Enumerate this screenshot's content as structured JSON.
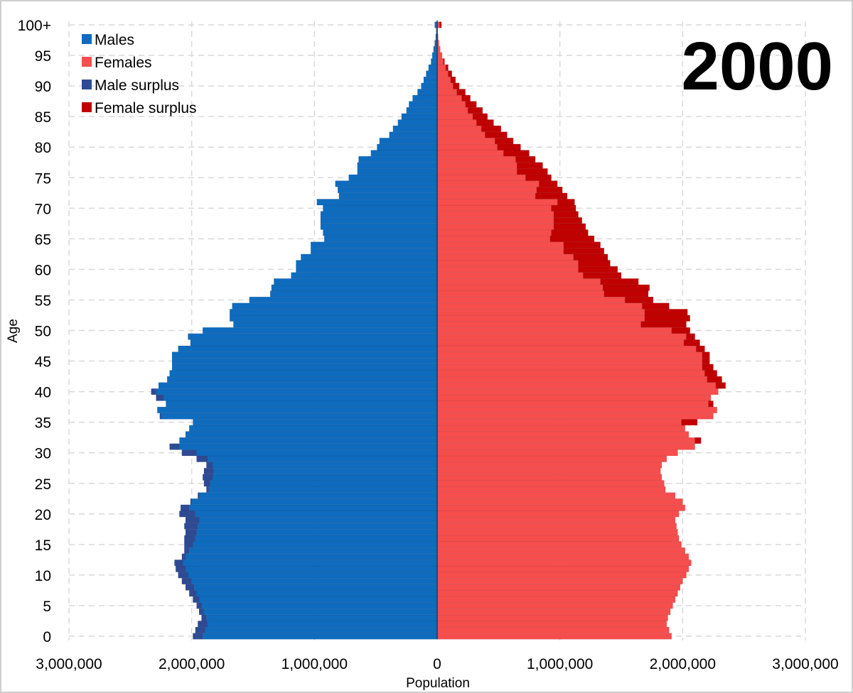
{
  "chart_data": {
    "type": "bar",
    "orientation": "horizontal",
    "subtype": "population-pyramid",
    "title": "2000",
    "xlabel": "Population",
    "ylabel": "Age",
    "xlim": [
      -3000000,
      3000000
    ],
    "x_ticks": [
      -3000000,
      -2000000,
      -1000000,
      0,
      1000000,
      2000000,
      3000000
    ],
    "x_tick_labels": [
      "3,000,000",
      "2,000,000",
      "1,000,000",
      "0",
      "1,000,000",
      "2,000,000",
      "3,000,000"
    ],
    "y_ticks": [
      0,
      5,
      10,
      15,
      20,
      25,
      30,
      35,
      40,
      45,
      50,
      55,
      60,
      65,
      70,
      75,
      80,
      85,
      90,
      95,
      100
    ],
    "y_tick_labels": [
      "0",
      "5",
      "10",
      "15",
      "20",
      "25",
      "30",
      "35",
      "40",
      "45",
      "50",
      "55",
      "60",
      "65",
      "70",
      "75",
      "80",
      "85",
      "90",
      "95",
      "100+"
    ],
    "legend": [
      {
        "name": "Males",
        "color": "#0f6bbd"
      },
      {
        "name": "Females",
        "color": "#f64d4d"
      },
      {
        "name": "Male surplus",
        "color": "#2e4a93"
      },
      {
        "name": "Female surplus",
        "color": "#c00000"
      }
    ],
    "legend_position": "top-left",
    "grid": true,
    "ages": [
      0,
      1,
      2,
      3,
      4,
      5,
      6,
      7,
      8,
      9,
      10,
      11,
      12,
      13,
      14,
      15,
      16,
      17,
      18,
      19,
      20,
      21,
      22,
      23,
      24,
      25,
      26,
      27,
      28,
      29,
      30,
      31,
      32,
      33,
      34,
      35,
      36,
      37,
      38,
      39,
      40,
      41,
      42,
      43,
      44,
      45,
      46,
      47,
      48,
      49,
      50,
      51,
      52,
      53,
      54,
      55,
      56,
      57,
      58,
      59,
      60,
      61,
      62,
      63,
      64,
      65,
      66,
      67,
      68,
      69,
      70,
      71,
      72,
      73,
      74,
      75,
      76,
      77,
      78,
      79,
      80,
      81,
      82,
      83,
      84,
      85,
      86,
      87,
      88,
      89,
      90,
      91,
      92,
      93,
      94,
      95,
      96,
      97,
      98,
      99,
      100
    ],
    "series": [
      {
        "name": "Males",
        "values": [
          1990000,
          1970000,
          1950000,
          1920000,
          1940000,
          1960000,
          1990000,
          2020000,
          2050000,
          2080000,
          2110000,
          2130000,
          2140000,
          2080000,
          2060000,
          2060000,
          2060000,
          2050000,
          2060000,
          2050000,
          2100000,
          2090000,
          2010000,
          1950000,
          1880000,
          1900000,
          1910000,
          1900000,
          1880000,
          1960000,
          2080000,
          2180000,
          2100000,
          2050000,
          2020000,
          1990000,
          2260000,
          2280000,
          2210000,
          2290000,
          2330000,
          2270000,
          2200000,
          2180000,
          2160000,
          2160000,
          2160000,
          2110000,
          2010000,
          2030000,
          1910000,
          1660000,
          1690000,
          1690000,
          1670000,
          1530000,
          1360000,
          1350000,
          1330000,
          1190000,
          1150000,
          1150000,
          1110000,
          1030000,
          1030000,
          920000,
          930000,
          950000,
          950000,
          950000,
          930000,
          980000,
          800000,
          810000,
          830000,
          720000,
          650000,
          650000,
          640000,
          540000,
          490000,
          470000,
          390000,
          360000,
          320000,
          290000,
          250000,
          230000,
          200000,
          160000,
          130000,
          110000,
          90000,
          70000,
          50000,
          40000,
          30000,
          20000,
          12000,
          8000,
          20000
        ],
        "color": "#0f6bbd"
      },
      {
        "name": "Females",
        "values": [
          1910000,
          1890000,
          1870000,
          1880000,
          1900000,
          1920000,
          1940000,
          1960000,
          1980000,
          2000000,
          2030000,
          2050000,
          2070000,
          2050000,
          2020000,
          1990000,
          1970000,
          1960000,
          1950000,
          1940000,
          1970000,
          2020000,
          2000000,
          1940000,
          1860000,
          1850000,
          1830000,
          1820000,
          1830000,
          1870000,
          1960000,
          2100000,
          2150000,
          2050000,
          2020000,
          2120000,
          2250000,
          2280000,
          2250000,
          2230000,
          2290000,
          2350000,
          2320000,
          2280000,
          2250000,
          2220000,
          2220000,
          2180000,
          2140000,
          2100000,
          2060000,
          2030000,
          2060000,
          2040000,
          1890000,
          1760000,
          1720000,
          1730000,
          1640000,
          1500000,
          1470000,
          1410000,
          1390000,
          1360000,
          1330000,
          1280000,
          1230000,
          1210000,
          1180000,
          1150000,
          1130000,
          1120000,
          1060000,
          1020000,
          980000,
          930000,
          900000,
          860000,
          800000,
          750000,
          680000,
          620000,
          570000,
          520000,
          460000,
          410000,
          370000,
          320000,
          270000,
          230000,
          180000,
          150000,
          120000,
          90000,
          60000,
          40000,
          25000,
          15000,
          8000,
          4000,
          35000
        ],
        "color": "#f64d4d"
      }
    ],
    "surplus_note": "Per age: surplus = |Males - Females|, drawn on the larger side in the darker shade."
  }
}
